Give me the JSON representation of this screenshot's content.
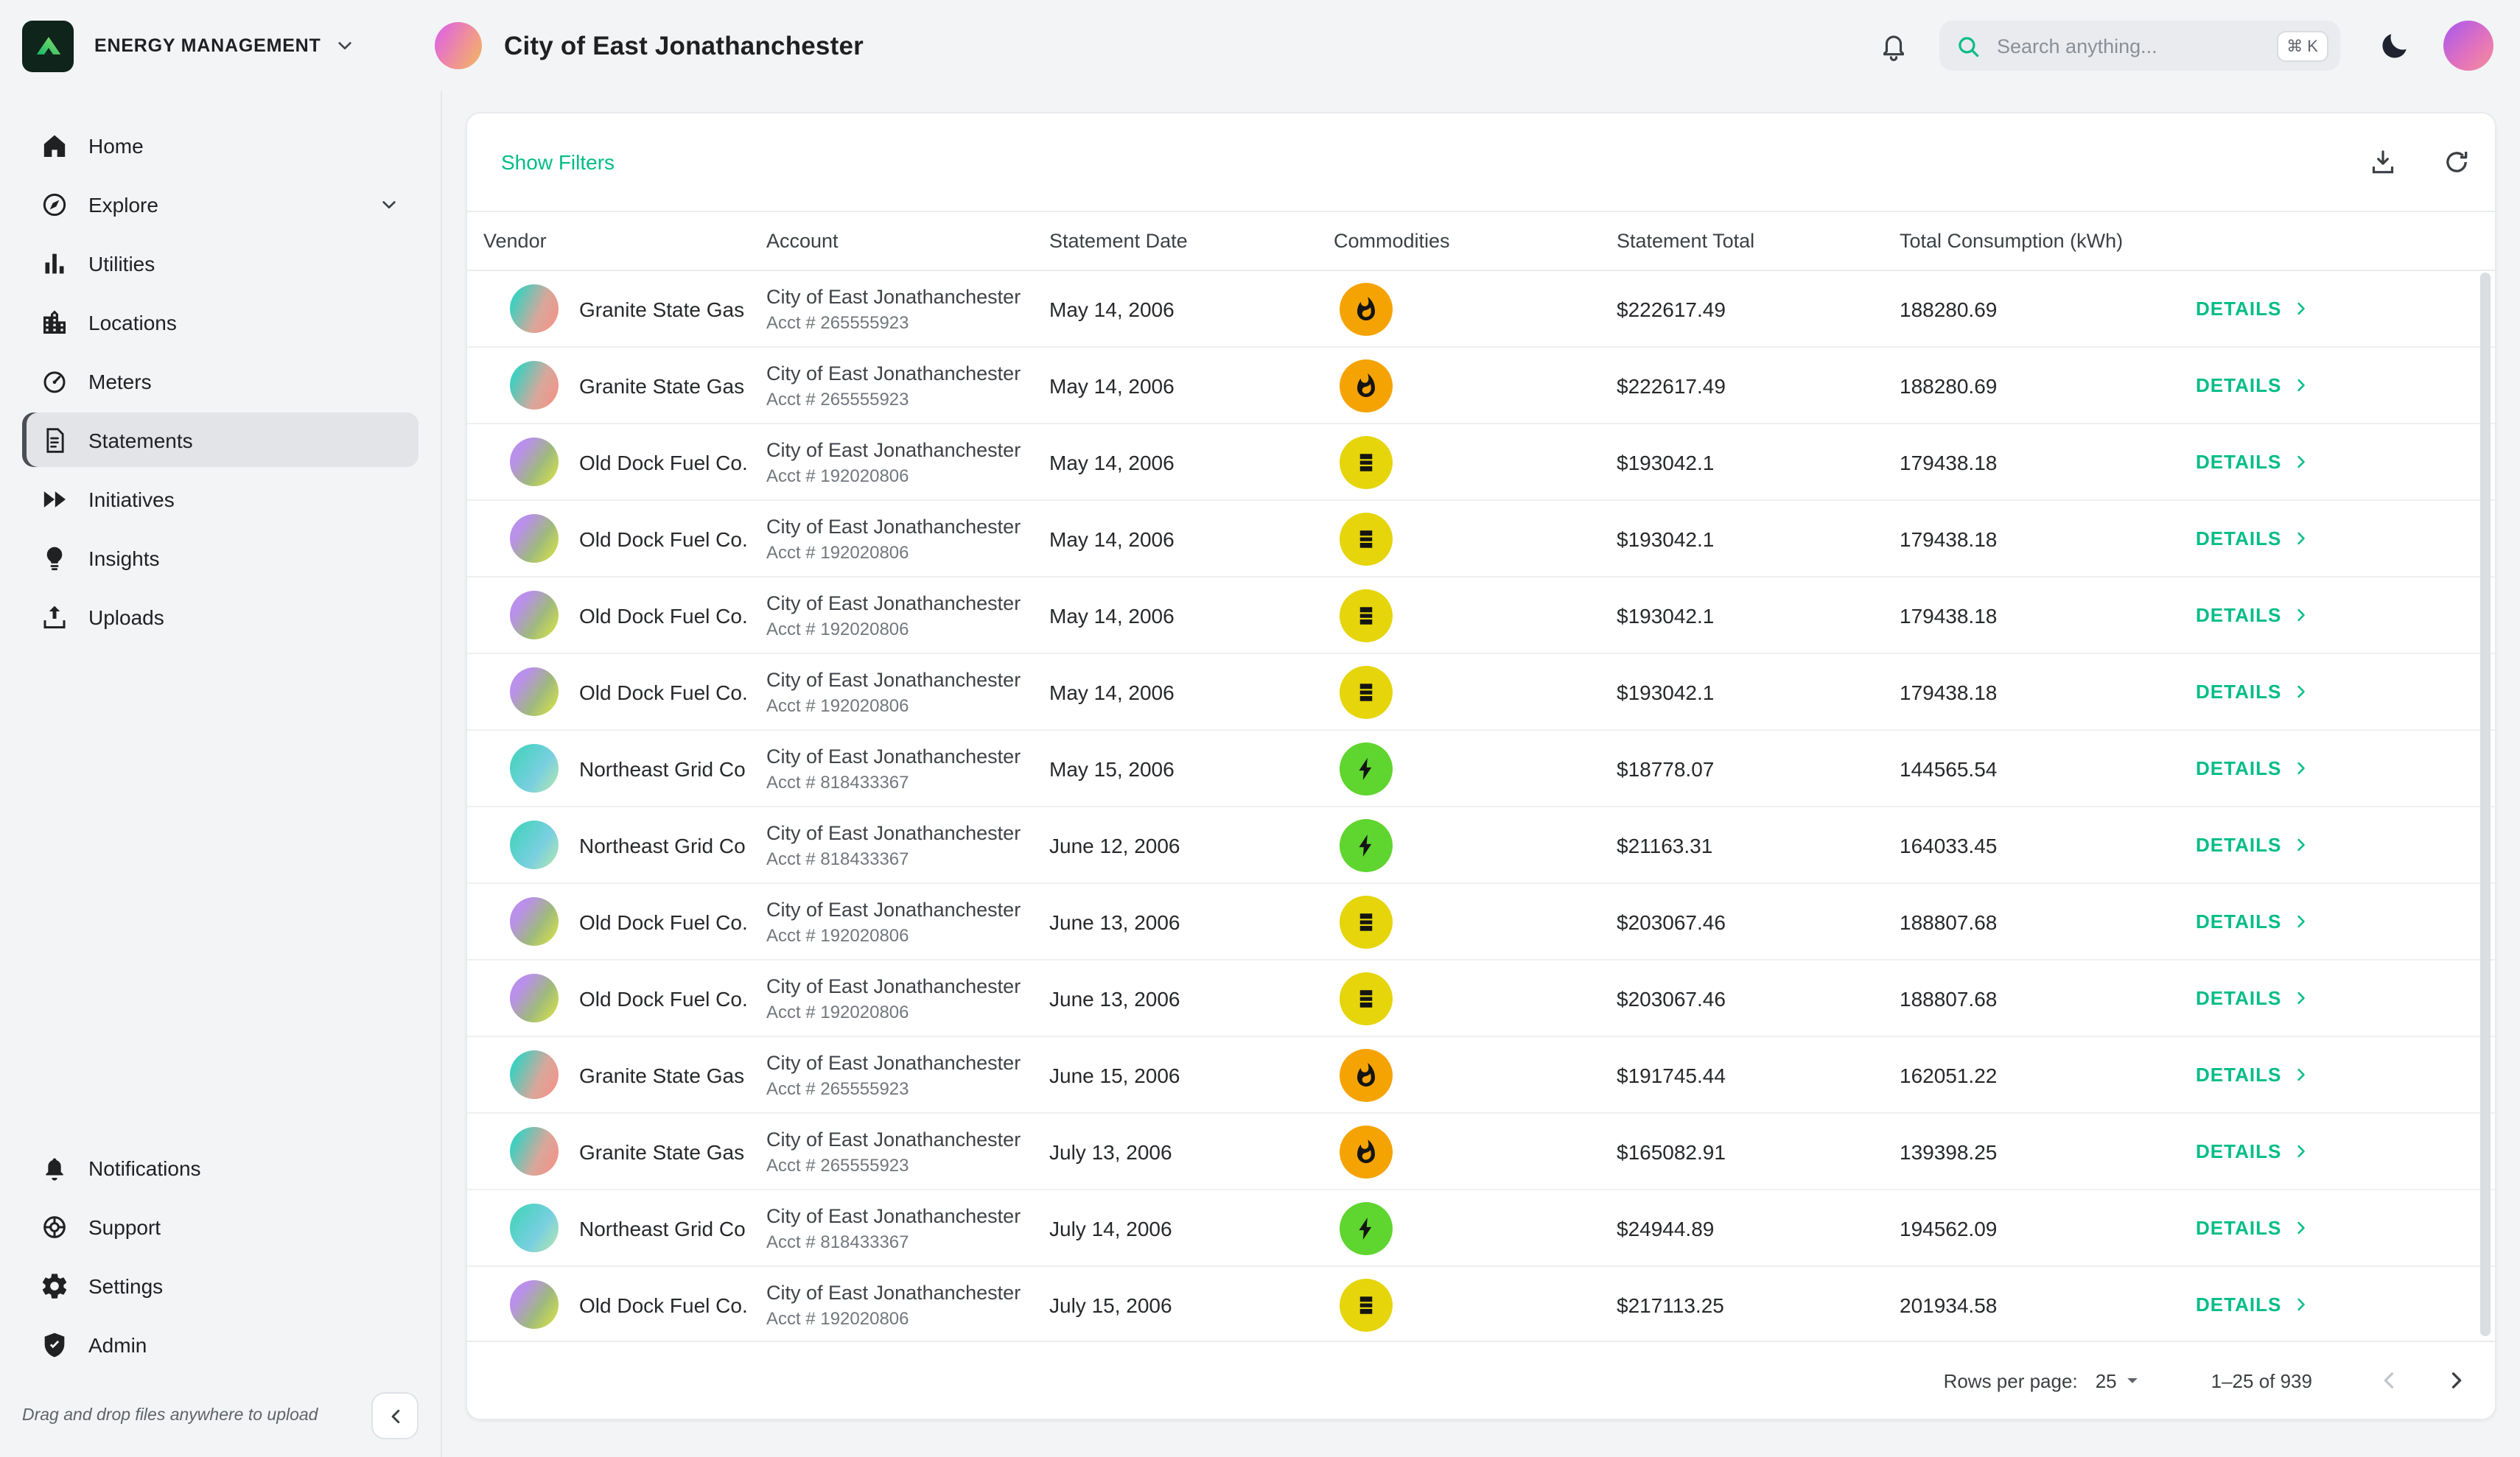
{
  "colors": {
    "accent": "#00bd86",
    "gas": "#f5a302",
    "oil": "#e5d50a",
    "electric": "#5fd52f"
  },
  "topbar": {
    "org_label": "ENERGY MANAGEMENT",
    "page_title": "City of East Jonathanchester",
    "icons": [
      "bell-icon",
      "search-icon",
      "moon-icon",
      "profile-avatar"
    ],
    "search": {
      "placeholder": "Search anything...",
      "value": "",
      "shortcut": "⌘ K",
      "icon": "search-icon"
    }
  },
  "sidebar": {
    "items": [
      {
        "label": "Home",
        "icon": "home-icon",
        "selected": false,
        "expandable": false
      },
      {
        "label": "Explore",
        "icon": "explore-icon",
        "selected": false,
        "expandable": true
      },
      {
        "label": "Utilities",
        "icon": "utilities-icon",
        "selected": false,
        "expandable": false
      },
      {
        "label": "Locations",
        "icon": "locations-icon",
        "selected": false,
        "expandable": false
      },
      {
        "label": "Meters",
        "icon": "meters-icon",
        "selected": false,
        "expandable": false
      },
      {
        "label": "Statements",
        "icon": "statements-icon",
        "selected": true,
        "expandable": false
      },
      {
        "label": "Initiatives",
        "icon": "initiatives-icon",
        "selected": false,
        "expandable": false
      },
      {
        "label": "Insights",
        "icon": "insights-icon",
        "selected": false,
        "expandable": false
      },
      {
        "label": "Uploads",
        "icon": "uploads-icon",
        "selected": false,
        "expandable": false
      }
    ],
    "bottom_items": [
      {
        "label": "Notifications",
        "icon": "bell-icon",
        "selected": false,
        "expandable": false
      },
      {
        "label": "Support",
        "icon": "support-icon",
        "selected": false,
        "expandable": false
      },
      {
        "label": "Settings",
        "icon": "settings-icon",
        "selected": false,
        "expandable": false
      },
      {
        "label": "Admin",
        "icon": "admin-icon",
        "selected": false,
        "expandable": false
      }
    ],
    "upload_hint": "Drag and drop files anywhere to upload",
    "collapse_icon": "chevron-left-icon"
  },
  "content": {
    "show_filters_label": "Show Filters",
    "toolbar_icons": [
      "download-icon",
      "refresh-icon"
    ],
    "table": {
      "columns": [
        "Vendor",
        "Account",
        "Statement Date",
        "Commodities",
        "Statement Total",
        "Total Consumption (kWh)"
      ],
      "details_label": "DETAILS",
      "rows": [
        {
          "vendor": "Granite State Gas",
          "avatar": "granite",
          "account_name": "City of East Jonathanchester",
          "account_number": "Acct # 265555923",
          "date": "May 14, 2006",
          "commodity": "gas",
          "total": "$222617.49",
          "consumption": "188280.69"
        },
        {
          "vendor": "Granite State Gas",
          "avatar": "granite",
          "account_name": "City of East Jonathanchester",
          "account_number": "Acct # 265555923",
          "date": "May 14, 2006",
          "commodity": "gas",
          "total": "$222617.49",
          "consumption": "188280.69"
        },
        {
          "vendor": "Old Dock Fuel Co.",
          "avatar": "olddock",
          "account_name": "City of East Jonathanchester",
          "account_number": "Acct # 192020806",
          "date": "May 14, 2006",
          "commodity": "oil",
          "total": "$193042.1",
          "consumption": "179438.18"
        },
        {
          "vendor": "Old Dock Fuel Co.",
          "avatar": "olddock",
          "account_name": "City of East Jonathanchester",
          "account_number": "Acct # 192020806",
          "date": "May 14, 2006",
          "commodity": "oil",
          "total": "$193042.1",
          "consumption": "179438.18"
        },
        {
          "vendor": "Old Dock Fuel Co.",
          "avatar": "olddock",
          "account_name": "City of East Jonathanchester",
          "account_number": "Acct # 192020806",
          "date": "May 14, 2006",
          "commodity": "oil",
          "total": "$193042.1",
          "consumption": "179438.18"
        },
        {
          "vendor": "Old Dock Fuel Co.",
          "avatar": "olddock",
          "account_name": "City of East Jonathanchester",
          "account_number": "Acct # 192020806",
          "date": "May 14, 2006",
          "commodity": "oil",
          "total": "$193042.1",
          "consumption": "179438.18"
        },
        {
          "vendor": "Northeast Grid Co",
          "avatar": "northeast",
          "account_name": "City of East Jonathanchester",
          "account_number": "Acct # 818433367",
          "date": "May 15, 2006",
          "commodity": "electric",
          "total": "$18778.07",
          "consumption": "144565.54"
        },
        {
          "vendor": "Northeast Grid Co",
          "avatar": "northeast",
          "account_name": "City of East Jonathanchester",
          "account_number": "Acct # 818433367",
          "date": "June 12, 2006",
          "commodity": "electric",
          "total": "$21163.31",
          "consumption": "164033.45"
        },
        {
          "vendor": "Old Dock Fuel Co.",
          "avatar": "olddock",
          "account_name": "City of East Jonathanchester",
          "account_number": "Acct # 192020806",
          "date": "June 13, 2006",
          "commodity": "oil",
          "total": "$203067.46",
          "consumption": "188807.68"
        },
        {
          "vendor": "Old Dock Fuel Co.",
          "avatar": "olddock",
          "account_name": "City of East Jonathanchester",
          "account_number": "Acct # 192020806",
          "date": "June 13, 2006",
          "commodity": "oil",
          "total": "$203067.46",
          "consumption": "188807.68"
        },
        {
          "vendor": "Granite State Gas",
          "avatar": "granite",
          "account_name": "City of East Jonathanchester",
          "account_number": "Acct # 265555923",
          "date": "June 15, 2006",
          "commodity": "gas",
          "total": "$191745.44",
          "consumption": "162051.22"
        },
        {
          "vendor": "Granite State Gas",
          "avatar": "granite",
          "account_name": "City of East Jonathanchester",
          "account_number": "Acct # 265555923",
          "date": "July 13, 2006",
          "commodity": "gas",
          "total": "$165082.91",
          "consumption": "139398.25"
        },
        {
          "vendor": "Northeast Grid Co",
          "avatar": "northeast",
          "account_name": "City of East Jonathanchester",
          "account_number": "Acct # 818433367",
          "date": "July 14, 2006",
          "commodity": "electric",
          "total": "$24944.89",
          "consumption": "194562.09"
        },
        {
          "vendor": "Old Dock Fuel Co.",
          "avatar": "olddock",
          "account_name": "City of East Jonathanchester",
          "account_number": "Acct # 192020806",
          "date": "July 15, 2006",
          "commodity": "oil",
          "total": "$217113.25",
          "consumption": "201934.58"
        }
      ]
    },
    "pagination": {
      "rows_per_page_label": "Rows per page:",
      "rows_per_page_value": "25",
      "range_label": "1–25 of 939"
    }
  }
}
